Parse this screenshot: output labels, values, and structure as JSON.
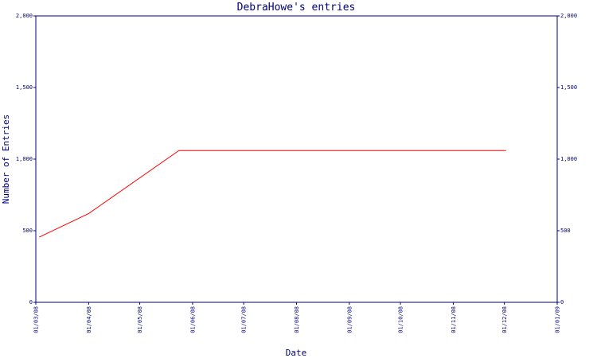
{
  "chart_data": {
    "type": "line",
    "title": "DebraHowe's entries",
    "xlabel": "Date",
    "ylabel": "Number of Entries",
    "x_tick_labels": [
      "01/03/08",
      "01/04/08",
      "01/05/08",
      "01/06/08",
      "01/07/08",
      "01/08/08",
      "01/09/08",
      "01/10/08",
      "01/11/08",
      "01/12/08",
      "01/01/09"
    ],
    "y_tick_labels": [
      "0",
      "500",
      "1,000",
      "1,500",
      "2,000"
    ],
    "y_ticks": [
      0,
      500,
      1000,
      1500,
      2000
    ],
    "ylim": [
      0,
      2000
    ],
    "xlim": [
      "2008-03-01",
      "2009-01-01"
    ],
    "grid": false,
    "right_axis_mirrors_left": true,
    "series": [
      {
        "color": "#ff0000",
        "points": [
          {
            "x": "2008-03-03",
            "y": 455
          },
          {
            "x": "2008-04-01",
            "y": 620
          },
          {
            "x": "2008-05-24",
            "y": 1060
          },
          {
            "x": "2008-12-02",
            "y": 1060
          }
        ]
      }
    ],
    "colors": {
      "axis": "#00007f",
      "line": "#ff0000",
      "background": "#ffffff"
    }
  }
}
